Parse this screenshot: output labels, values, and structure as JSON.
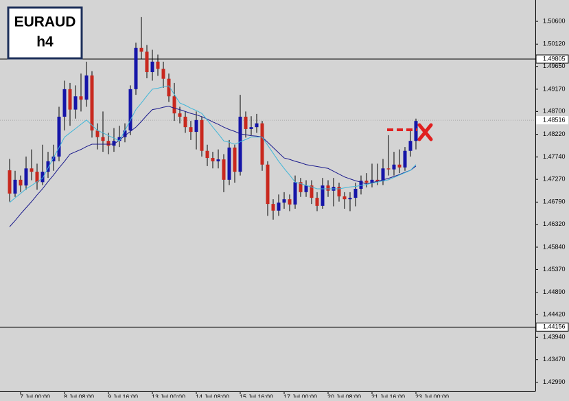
{
  "chart_data": {
    "type": "candlestick",
    "title": "EURAUD",
    "subtitle": "h4",
    "categories": [
      null,
      null,
      "7 Jul 00:00",
      null,
      null,
      null,
      null,
      null,
      null,
      null,
      "8 Jul 08:00",
      null,
      null,
      null,
      null,
      null,
      null,
      null,
      "9 Jul 16:00",
      null,
      null,
      null,
      null,
      null,
      null,
      null,
      "13 Jul 00:00",
      null,
      null,
      null,
      null,
      null,
      null,
      null,
      "14 Jul 08:00",
      null,
      null,
      null,
      null,
      null,
      null,
      null,
      "15 Jul 16:00",
      null,
      null,
      null,
      null,
      null,
      null,
      null,
      "17 Jul 00:00",
      null,
      null,
      null,
      null,
      null,
      null,
      null,
      "20 Jul 08:00",
      null,
      null,
      null,
      null,
      null,
      null,
      null,
      "21 Jul 16:00",
      null,
      null,
      null,
      null,
      null,
      null,
      null,
      "23 Jul 00:00"
    ],
    "open": [
      1.4746,
      1.4697,
      1.4726,
      1.4714,
      1.475,
      1.4743,
      1.4721,
      1.4743,
      1.4765,
      1.4775,
      1.4859,
      1.4917,
      1.4874,
      1.4902,
      1.4895,
      1.4946,
      1.483,
      1.4816,
      1.4808,
      1.4798,
      1.4808,
      1.4816,
      1.483,
      1.4917,
      1.5004,
      1.4996,
      1.4953,
      1.4975,
      1.496,
      1.4939,
      1.4902,
      1.4866,
      1.4859,
      1.4837,
      1.4827,
      1.4852,
      1.4787,
      1.4772,
      1.4765,
      1.4769,
      1.4726,
      1.4794,
      1.4743,
      1.4859,
      1.4833,
      1.4837,
      1.4845,
      1.4758,
      1.4675,
      1.4661,
      1.4678,
      1.4685,
      1.4674,
      1.4721,
      1.47,
      1.4714,
      1.4688,
      1.4671,
      1.4714,
      1.4703,
      1.4711,
      1.4691,
      1.4685,
      1.4688,
      1.4707,
      1.4724,
      1.472,
      1.4726,
      1.4723,
      1.475,
      1.4748,
      1.4758,
      1.4752,
      1.4787,
      1.4808
    ],
    "high": [
      1.477,
      1.4745,
      1.4735,
      1.4775,
      1.479,
      1.476,
      1.48,
      1.4785,
      1.48,
      1.488,
      1.4935,
      1.493,
      1.4925,
      1.495,
      1.4975,
      1.4955,
      1.4845,
      1.487,
      1.4825,
      1.4835,
      1.484,
      1.4845,
      1.4925,
      1.5015,
      1.5069,
      1.501,
      1.5,
      1.499,
      1.4975,
      1.495,
      1.493,
      1.488,
      1.487,
      1.485,
      1.487,
      1.486,
      1.48,
      1.4785,
      1.479,
      1.478,
      1.481,
      1.48,
      1.4905,
      1.487,
      1.486,
      1.4865,
      1.485,
      1.4765,
      1.4685,
      1.4695,
      1.47,
      1.4695,
      1.4735,
      1.473,
      1.4725,
      1.4725,
      1.47,
      1.473,
      1.4725,
      1.473,
      1.472,
      1.47,
      1.47,
      1.472,
      1.4735,
      1.474,
      1.476,
      1.476,
      1.477,
      1.482,
      1.4785,
      1.479,
      1.4795,
      1.483,
      1.4855
    ],
    "low": [
      1.468,
      1.469,
      1.47,
      1.4705,
      1.4725,
      1.4705,
      1.4715,
      1.473,
      1.4745,
      1.4765,
      1.483,
      1.484,
      1.4855,
      1.487,
      1.488,
      1.4815,
      1.479,
      1.4785,
      1.478,
      1.4785,
      1.4795,
      1.4805,
      1.482,
      1.4905,
      1.498,
      1.494,
      1.4935,
      1.4945,
      1.492,
      1.489,
      1.485,
      1.4845,
      1.4825,
      1.481,
      1.479,
      1.4775,
      1.4755,
      1.475,
      1.475,
      1.47,
      1.4715,
      1.472,
      1.4735,
      1.4815,
      1.482,
      1.4825,
      1.4745,
      1.465,
      1.4642,
      1.465,
      1.4665,
      1.466,
      1.4665,
      1.469,
      1.469,
      1.4675,
      1.466,
      1.4665,
      1.469,
      1.467,
      1.468,
      1.4665,
      1.466,
      1.467,
      1.4695,
      1.471,
      1.471,
      1.4715,
      1.4715,
      1.4735,
      1.4735,
      1.474,
      1.4745,
      1.4775,
      1.479
    ],
    "close": [
      1.4697,
      1.4726,
      1.4714,
      1.475,
      1.4743,
      1.4721,
      1.4743,
      1.4765,
      1.4775,
      1.4859,
      1.4917,
      1.4874,
      1.4902,
      1.4895,
      1.4946,
      1.483,
      1.4816,
      1.4808,
      1.4798,
      1.4808,
      1.4816,
      1.483,
      1.4917,
      1.5004,
      1.4996,
      1.4953,
      1.4975,
      1.496,
      1.4939,
      1.4902,
      1.4866,
      1.4859,
      1.4837,
      1.4827,
      1.4852,
      1.4787,
      1.4772,
      1.4765,
      1.4769,
      1.4726,
      1.4794,
      1.4743,
      1.4859,
      1.4833,
      1.4837,
      1.4845,
      1.4758,
      1.4675,
      1.4661,
      1.4678,
      1.4685,
      1.4674,
      1.4721,
      1.47,
      1.4714,
      1.4688,
      1.4671,
      1.4714,
      1.4703,
      1.4711,
      1.4691,
      1.4685,
      1.4688,
      1.4707,
      1.4724,
      1.472,
      1.4726,
      1.4723,
      1.475,
      1.4748,
      1.4758,
      1.4752,
      1.4787,
      1.4808,
      1.485
    ],
    "up_color": "#1515a8",
    "down_color": "#c8281e",
    "lines": [
      {
        "color": "#1a1a8c",
        "values": [
          1.4627,
          1.464,
          1.4654,
          1.4667,
          1.468,
          1.4694,
          1.4707,
          1.4722,
          1.4736,
          1.4751,
          1.4765,
          1.478,
          1.4785,
          1.479,
          1.4796,
          1.4801,
          1.4801,
          1.4801,
          1.4801,
          1.4801,
          1.481,
          1.4819,
          1.4828,
          1.4837,
          1.4849,
          1.4862,
          1.4874,
          1.4876,
          1.4879,
          1.4881,
          1.4877,
          1.4874,
          1.487,
          1.4866,
          1.4863,
          1.4859,
          1.4854,
          1.4848,
          1.4843,
          1.4837,
          1.4832,
          1.4828,
          1.4823,
          1.4821,
          1.4819,
          1.4818,
          1.4816,
          1.4805,
          1.4794,
          1.4783,
          1.4772,
          1.4769,
          1.4765,
          1.4762,
          1.4758,
          1.4756,
          1.4754,
          1.4752,
          1.475,
          1.4744,
          1.4738,
          1.4732,
          1.4728,
          1.4724,
          1.4721,
          1.4717,
          1.472,
          1.4723,
          1.4726,
          1.4729,
          1.4733,
          1.4737,
          1.4742,
          1.4746,
          1.4755
        ]
      },
      {
        "color": "#3fb6d8",
        "values": [
          1.4678,
          1.4688,
          1.4697,
          1.4707,
          1.4714,
          1.4722,
          1.4729,
          1.4751,
          1.4773,
          1.4794,
          1.4816,
          1.4825,
          1.4834,
          1.4843,
          1.4852,
          1.4841,
          1.483,
          1.4825,
          1.4819,
          1.4814,
          1.4808,
          1.483,
          1.4852,
          1.4874,
          1.4888,
          1.4903,
          1.4917,
          1.4919,
          1.4922,
          1.4924,
          1.4906,
          1.4888,
          1.4883,
          1.4877,
          1.4872,
          1.4866,
          1.4852,
          1.4837,
          1.4823,
          1.4808,
          1.4805,
          1.4801,
          1.4806,
          1.4811,
          1.4816,
          1.4816,
          1.4816,
          1.4799,
          1.4782,
          1.4765,
          1.475,
          1.4736,
          1.4721,
          1.4718,
          1.4714,
          1.4711,
          1.4707,
          1.4707,
          1.4707,
          1.4707,
          1.4707,
          1.4709,
          1.4711,
          1.4712,
          1.4714,
          1.4716,
          1.4719,
          1.4721,
          1.4724,
          1.4726,
          1.4731,
          1.4736,
          1.4741,
          1.4746,
          1.4758
        ]
      }
    ],
    "ylim": [
      1.428,
      1.5105
    ],
    "yticks": [
      {
        "value": 1.506,
        "label": "1.50600"
      },
      {
        "value": 1.5012,
        "label": "1.50120"
      },
      {
        "value": 1.4965,
        "label": "1.49650"
      },
      {
        "value": 1.4917,
        "label": "1.49170"
      },
      {
        "value": 1.487,
        "label": "1.48700"
      },
      {
        "value": 1.4822,
        "label": "1.48220"
      },
      {
        "value": 1.4774,
        "label": "1.47740"
      },
      {
        "value": 1.4727,
        "label": "1.47270"
      },
      {
        "value": 1.4679,
        "label": "1.46790"
      },
      {
        "value": 1.4632,
        "label": "1.46320"
      },
      {
        "value": 1.4584,
        "label": "1.45840"
      },
      {
        "value": 1.4537,
        "label": "1.45370"
      },
      {
        "value": 1.4489,
        "label": "1.44890"
      },
      {
        "value": 1.4442,
        "label": "1.44420"
      },
      {
        "value": 1.4394,
        "label": "1.43940"
      },
      {
        "value": 1.4347,
        "label": "1.43470"
      },
      {
        "value": 1.4299,
        "label": "1.42990"
      }
    ],
    "levels": [
      {
        "value": 1.49805,
        "label": "1.49805"
      },
      {
        "value": 1.44156,
        "label": "1.44156"
      }
    ],
    "current_price": {
      "value": 1.48516,
      "label": "1.48516"
    }
  }
}
